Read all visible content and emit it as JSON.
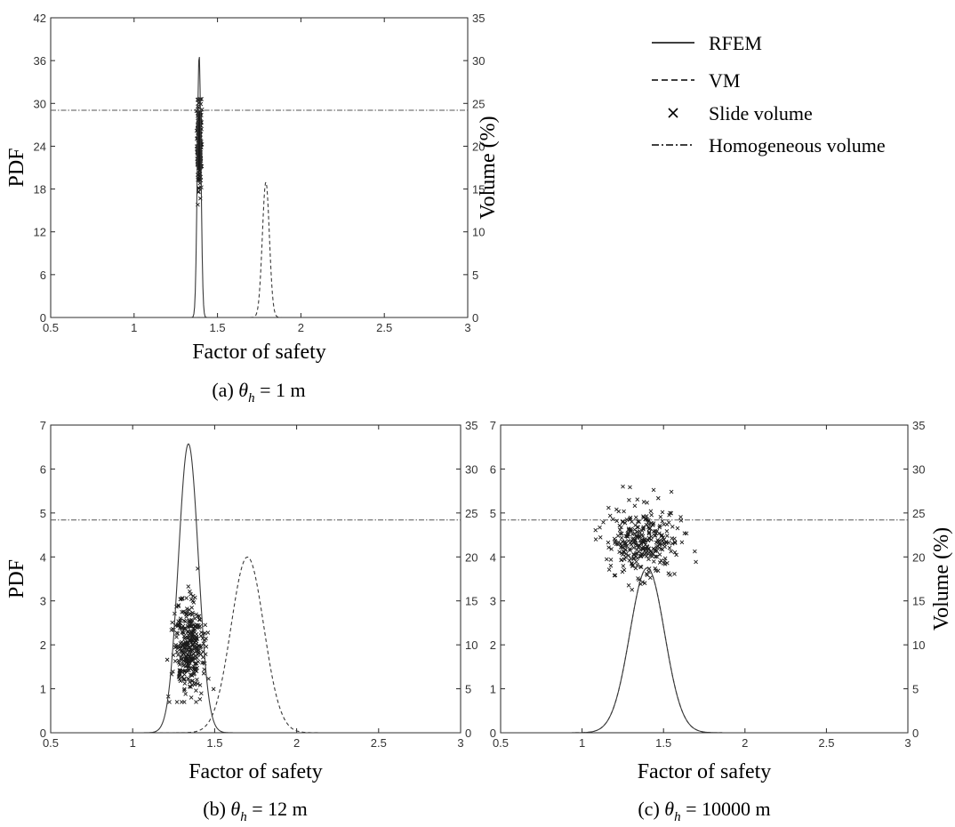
{
  "legend": {
    "items": [
      {
        "label": "RFEM",
        "style": "solid"
      },
      {
        "label": "VM",
        "style": "dashed"
      },
      {
        "label": "Slide volume",
        "style": "marker"
      },
      {
        "label": "Homogeneous volume",
        "style": "dashdot"
      }
    ]
  },
  "colors": {
    "line": "#3a3a3a",
    "marker": "#1a1a1a",
    "axis": "#262626",
    "homogeneous": "#555555"
  },
  "chart_data": [
    {
      "type": "line",
      "id": "a",
      "caption_prefix": "(a) ",
      "caption_symbol": "θ",
      "caption_sub": "h",
      "caption_suffix": " = 1 m",
      "xlabel": "Factor of safety",
      "ylabel": "PDF",
      "y2label": "Volume (%)",
      "xlim": [
        0.5,
        3
      ],
      "ylim": [
        0,
        42
      ],
      "y2lim": [
        0,
        35
      ],
      "xticks": [
        "0.5",
        "1",
        "1.5",
        "2",
        "2.5",
        "3"
      ],
      "yticks": [
        "0",
        "6",
        "12",
        "18",
        "24",
        "30",
        "36",
        "42"
      ],
      "y2ticks": [
        "0",
        "5",
        "10",
        "15",
        "20",
        "25",
        "30",
        "35"
      ],
      "series": [
        {
          "name": "RFEM",
          "kind": "normal_pdf",
          "mean": 1.39,
          "std": 0.0108,
          "style": "solid"
        },
        {
          "name": "VM",
          "kind": "normal_pdf",
          "mean": 1.79,
          "std": 0.021,
          "style": "dashed"
        }
      ],
      "homogeneous_volume": 24.2,
      "slide_volume": {
        "count": 260,
        "fos_mean": 1.39,
        "fos_std": 0.006,
        "vol_mean": 20.0,
        "vol_std": 2.4,
        "vol_min": 9.5,
        "vol_max": 25.5,
        "seed": 11
      }
    },
    {
      "type": "line",
      "id": "b",
      "caption_prefix": "(b) ",
      "caption_symbol": "θ",
      "caption_sub": "h",
      "caption_suffix": " = 12 m",
      "xlabel": "Factor of safety",
      "ylabel": "PDF",
      "y2label": "",
      "xlim": [
        0.5,
        3
      ],
      "ylim": [
        0,
        7
      ],
      "y2lim": [
        0,
        35
      ],
      "xticks": [
        "0.5",
        "1",
        "1.5",
        "2",
        "2.5",
        "3"
      ],
      "yticks": [
        "0",
        "1",
        "2",
        "3",
        "4",
        "5",
        "6",
        "7"
      ],
      "y2ticks": [
        "0",
        "5",
        "10",
        "15",
        "20",
        "25",
        "30",
        "35"
      ],
      "series": [
        {
          "name": "RFEM",
          "kind": "normal_pdf",
          "mean": 1.34,
          "std": 0.0607,
          "style": "solid"
        },
        {
          "name": "VM",
          "kind": "normal_pdf",
          "mean": 1.7,
          "std": 0.0998,
          "style": "dashed"
        }
      ],
      "homogeneous_volume": 24.2,
      "slide_volume": {
        "count": 340,
        "fos_mean": 1.34,
        "fos_std": 0.045,
        "vol_mean": 9.5,
        "vol_std": 2.8,
        "vol_min": 3.5,
        "vol_max": 24.0,
        "seed": 23
      }
    },
    {
      "type": "line",
      "id": "c",
      "caption_prefix": "(c) ",
      "caption_symbol": "θ",
      "caption_sub": "h",
      "caption_suffix": " = 10000 m",
      "xlabel": "Factor of safety",
      "ylabel": "",
      "y2label": "Volume (%)",
      "xlim": [
        0.5,
        3
      ],
      "ylim": [
        0,
        7
      ],
      "y2lim": [
        0,
        35
      ],
      "xticks": [
        "0.5",
        "1",
        "1.5",
        "2",
        "2.5",
        "3"
      ],
      "yticks": [
        "0",
        "1",
        "2",
        "3",
        "4",
        "5",
        "6",
        "7"
      ],
      "y2ticks": [
        "0",
        "5",
        "10",
        "15",
        "20",
        "25",
        "30",
        "35"
      ],
      "series": [
        {
          "name": "RFEM",
          "kind": "normal_pdf",
          "mean": 1.4,
          "std": 0.1064,
          "style": "solid"
        },
        {
          "name": "VM",
          "kind": "normal_pdf",
          "mean": 1.4,
          "std": 0.1064,
          "style": "dashed"
        }
      ],
      "homogeneous_volume": 24.2,
      "slide_volume": {
        "count": 320,
        "fos_mean": 1.38,
        "fos_std": 0.11,
        "vol_mean": 21.8,
        "vol_std": 2.0,
        "vol_min": 7.8,
        "vol_max": 28.0,
        "seed": 37
      }
    }
  ]
}
